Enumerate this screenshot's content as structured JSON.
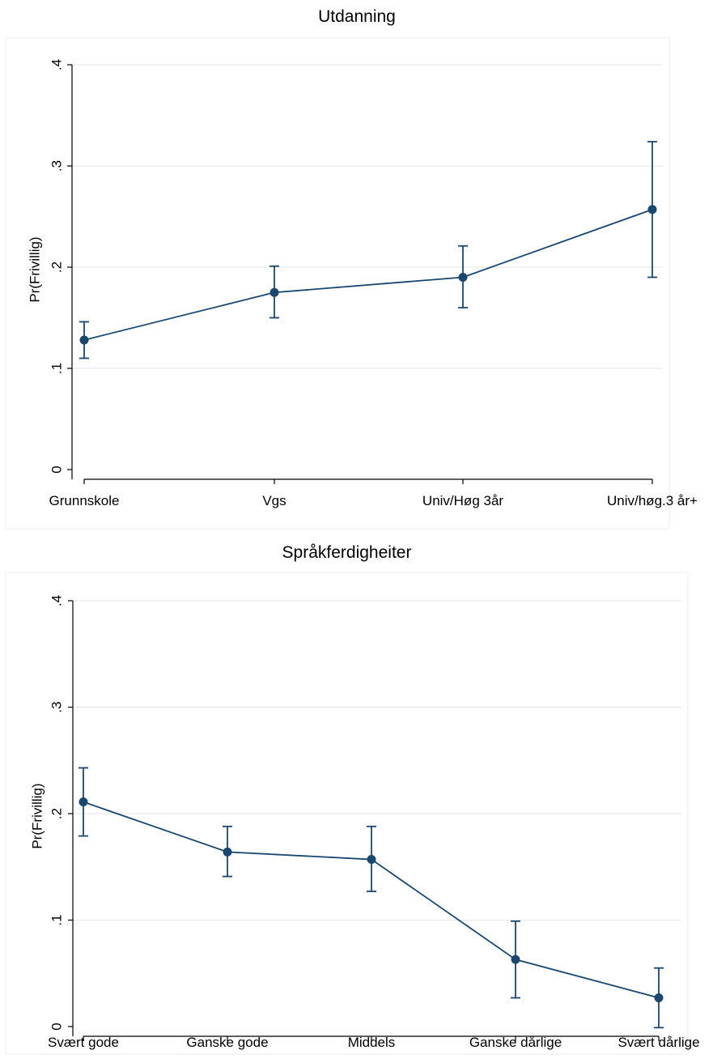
{
  "charts": [
    {
      "title": "Utdanning",
      "ylabel": "Pr(Frivillig)"
    },
    {
      "title": "Språkferdigheiter",
      "ylabel": "Pr(Frivillig)"
    }
  ],
  "chart_data": [
    {
      "type": "line",
      "title": "Utdanning",
      "xlabel": "",
      "ylabel": "Pr(Frivillig)",
      "ylim": [
        0,
        0.4
      ],
      "yticks": [
        0,
        0.1,
        0.2,
        0.3,
        0.4
      ],
      "ytick_labels": [
        "0",
        ".1",
        ".2",
        ".3",
        ".4"
      ],
      "grid": true,
      "categories": [
        "Grunnskole",
        "Vgs",
        "Univ/Høg 3år",
        "Univ/høg.3 år+"
      ],
      "values": [
        0.128,
        0.175,
        0.19,
        0.257
      ],
      "ci_lower": [
        0.11,
        0.15,
        0.16,
        0.19
      ],
      "ci_upper": [
        0.146,
        0.201,
        0.221,
        0.324
      ],
      "series_color": "#1a476f"
    },
    {
      "type": "line",
      "title": "Språkferdigheiter",
      "xlabel": "",
      "ylabel": "Pr(Frivillig)",
      "ylim": [
        0,
        0.4
      ],
      "yticks": [
        0,
        0.1,
        0.2,
        0.3,
        0.4
      ],
      "ytick_labels": [
        "0",
        ".1",
        ".2",
        ".3",
        ".4"
      ],
      "grid": true,
      "categories": [
        "Svært gode",
        "Ganske gode",
        "Middels",
        "Ganske dårlige",
        "Svært dårlige"
      ],
      "values": [
        0.211,
        0.164,
        0.157,
        0.063,
        0.027
      ],
      "ci_lower": [
        0.179,
        0.141,
        0.127,
        0.027,
        -0.001
      ],
      "ci_upper": [
        0.243,
        0.188,
        0.188,
        0.099,
        0.055
      ],
      "series_color": "#1a476f"
    }
  ]
}
